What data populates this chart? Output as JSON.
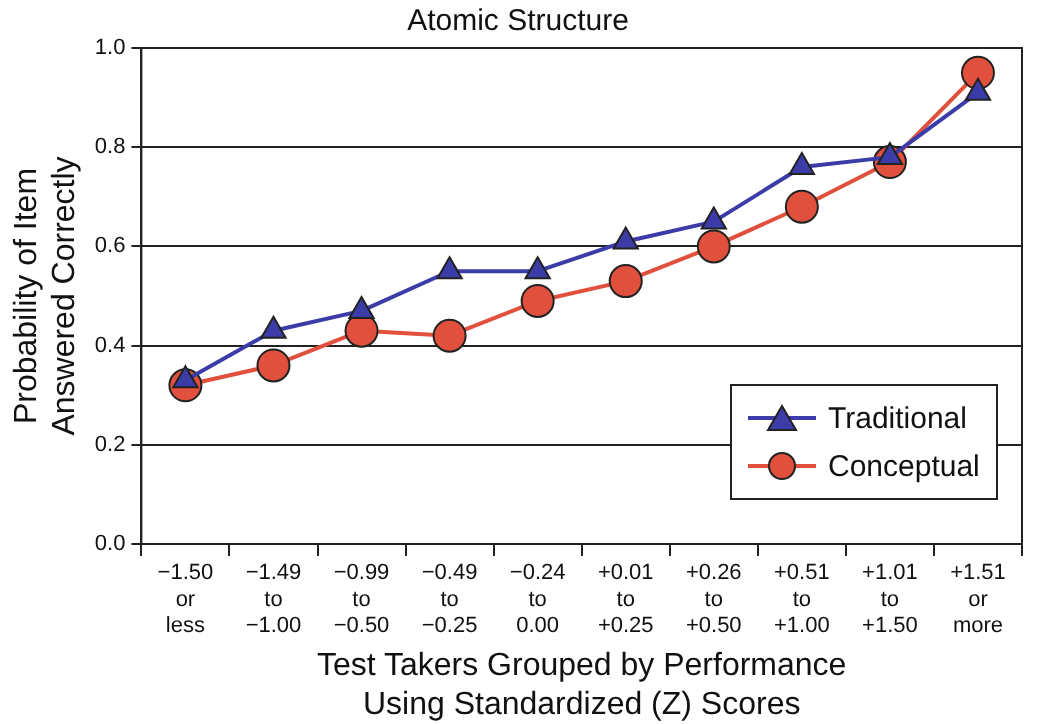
{
  "chart_data": {
    "type": "line",
    "title": "Atomic Structure",
    "xlabel": "Test Takers Grouped by Performance\nUsing Standardized (Z) Scores",
    "ylabel": "Probability of Item\nAnswered Correctly",
    "categories": [
      "−1.50\nor\nless",
      "−1.49\nto\n−1.00",
      "−0.99\nto\n−0.50",
      "−0.49\nto\n−0.25",
      "−0.24\nto\n0.00",
      "+0.01\nto\n+0.25",
      "+0.26\nto\n+0.50",
      "+0.51\nto\n+1.00",
      "+1.01\nto\n+1.50",
      "+1.51\nor\nmore"
    ],
    "series": [
      {
        "name": "Traditional",
        "color": "#3c3ca8",
        "marker": "triangle",
        "values": [
          0.33,
          0.43,
          0.47,
          0.55,
          0.55,
          0.61,
          0.65,
          0.76,
          0.78,
          0.91
        ]
      },
      {
        "name": "Conceptual",
        "color": "#e0503c",
        "marker": "circle",
        "values": [
          0.32,
          0.36,
          0.43,
          0.42,
          0.49,
          0.53,
          0.6,
          0.68,
          0.77,
          0.95
        ]
      }
    ],
    "ylim": [
      0,
      1
    ],
    "yticks": [
      {
        "value": 0,
        "label": "0.0"
      },
      {
        "value": 0.2,
        "label": "0.2"
      },
      {
        "value": 0.4,
        "label": "0.4"
      },
      {
        "value": 0.6,
        "label": "0.6"
      },
      {
        "value": 0.8,
        "label": "0.8"
      },
      {
        "value": 1,
        "label": "1.0"
      }
    ],
    "grid": "y",
    "legend": "bottom right",
    "line_style": "solid"
  }
}
